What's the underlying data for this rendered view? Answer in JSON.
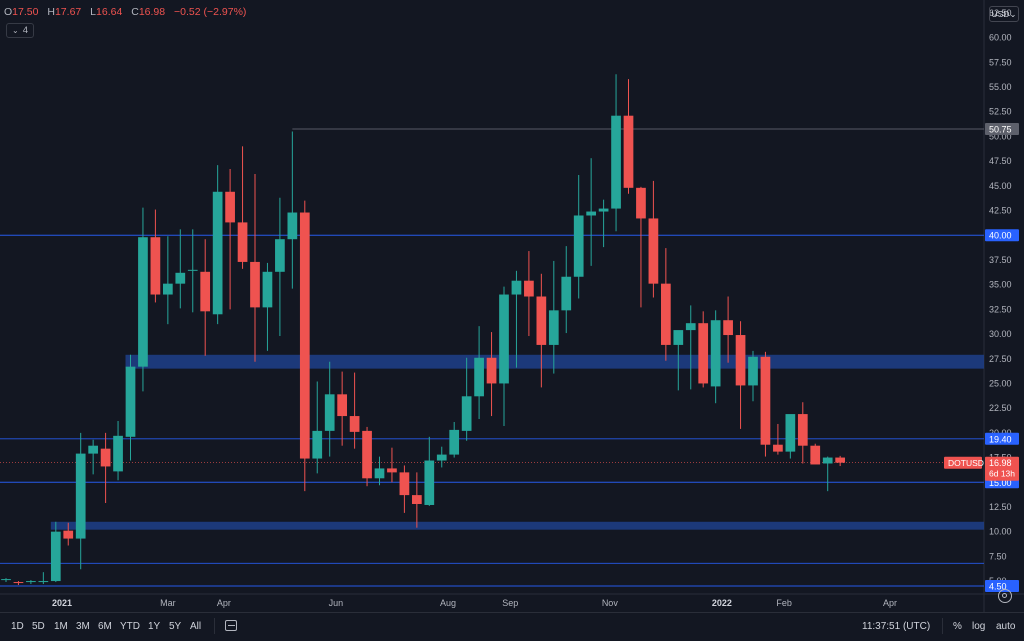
{
  "header": {
    "ohlc": [
      {
        "key": "O",
        "value": "17.50"
      },
      {
        "key": "H",
        "value": "17.67"
      },
      {
        "key": "L",
        "value": "16.64"
      },
      {
        "key": "C",
        "value": "16.98"
      },
      {
        "key": "",
        "value": "−0.52 (−2.97%)"
      }
    ],
    "indicator_count": "4",
    "currency": "USD"
  },
  "toolbar": {
    "timeframes": [
      "1D",
      "5D",
      "1M",
      "3M",
      "6M",
      "YTD",
      "1Y",
      "5Y",
      "All"
    ],
    "clock": "11:37:51 (UTC)",
    "percent": "%",
    "log": "log",
    "auto": "auto"
  },
  "colors": {
    "background": "#131722",
    "up": "#26a69a",
    "down": "#ef5350",
    "zone": "#1e3f8a",
    "hline": "#2962ff",
    "axis_text": "#b2b5be"
  },
  "chart_data": {
    "type": "candlestick",
    "symbol": "DOTUSD",
    "yaxis": {
      "min": 4.5,
      "max": 63.0,
      "ticks": [
        "5.00",
        "7.50",
        "10.00",
        "12.50",
        "15.00",
        "17.50",
        "20.00",
        "22.50",
        "25.00",
        "27.50",
        "30.00",
        "32.50",
        "35.00",
        "37.50",
        "40.00",
        "42.50",
        "45.00",
        "47.50",
        "50.00",
        "52.50",
        "55.00",
        "57.50",
        "60.00",
        "62.50"
      ]
    },
    "xaxis": {
      "labels": [
        {
          "label": "2021",
          "index": 4.5,
          "bold": true
        },
        {
          "label": "Mar",
          "index": 13
        },
        {
          "label": "Apr",
          "index": 17.5
        },
        {
          "label": "Jun",
          "index": 26.5
        },
        {
          "label": "Aug",
          "index": 35.5
        },
        {
          "label": "Sep",
          "index": 40.5
        },
        {
          "label": "Nov",
          "index": 48.5
        },
        {
          "label": "2022",
          "index": 57.5,
          "bold": true
        },
        {
          "label": "Feb",
          "index": 62.5
        },
        {
          "label": "Apr",
          "index": 71
        }
      ]
    },
    "candles": [
      [
        5.1,
        5.3,
        4.9,
        5.2
      ],
      [
        4.9,
        5.0,
        4.6,
        4.8
      ],
      [
        4.9,
        5.1,
        4.7,
        5.0
      ],
      [
        4.9,
        5.9,
        4.7,
        5.0
      ],
      [
        5.0,
        11.0,
        4.9,
        10.0
      ],
      [
        10.1,
        10.9,
        8.6,
        9.3
      ],
      [
        9.3,
        20.0,
        6.2,
        17.9
      ],
      [
        17.9,
        19.3,
        15.8,
        18.7
      ],
      [
        18.4,
        20.0,
        12.9,
        16.6
      ],
      [
        16.1,
        21.2,
        15.2,
        19.7
      ],
      [
        19.6,
        27.9,
        17.2,
        26.7
      ],
      [
        26.7,
        42.8,
        24.2,
        39.8
      ],
      [
        39.8,
        42.6,
        33.2,
        34.0
      ],
      [
        34.0,
        39.9,
        31.0,
        35.1
      ],
      [
        35.1,
        40.6,
        32.6,
        36.2
      ],
      [
        36.5,
        40.6,
        32.2,
        36.5
      ],
      [
        36.3,
        39.6,
        27.8,
        32.3
      ],
      [
        32.0,
        47.1,
        31.0,
        44.4
      ],
      [
        44.4,
        46.7,
        32.5,
        41.3
      ],
      [
        41.3,
        49.0,
        36.6,
        37.3
      ],
      [
        37.3,
        46.2,
        27.2,
        32.7
      ],
      [
        32.7,
        37.2,
        28.3,
        36.3
      ],
      [
        36.3,
        43.8,
        29.8,
        39.6
      ],
      [
        39.6,
        50.5,
        34.6,
        42.3
      ],
      [
        42.3,
        43.5,
        14.1,
        17.4
      ],
      [
        17.4,
        25.2,
        15.9,
        20.2
      ],
      [
        20.2,
        27.2,
        17.6,
        23.9
      ],
      [
        23.9,
        26.2,
        18.7,
        21.7
      ],
      [
        21.7,
        26.1,
        18.4,
        20.1
      ],
      [
        20.2,
        20.6,
        14.6,
        15.4
      ],
      [
        15.4,
        17.6,
        14.7,
        16.4
      ],
      [
        16.4,
        18.5,
        15.0,
        16.0
      ],
      [
        16.0,
        16.7,
        11.9,
        13.7
      ],
      [
        13.7,
        16.0,
        10.4,
        12.8
      ],
      [
        12.7,
        19.6,
        12.6,
        17.2
      ],
      [
        17.2,
        18.6,
        16.5,
        17.8
      ],
      [
        17.8,
        21.1,
        17.5,
        20.3
      ],
      [
        20.2,
        27.6,
        19.2,
        23.7
      ],
      [
        23.7,
        30.8,
        21.4,
        27.6
      ],
      [
        27.6,
        30.2,
        21.7,
        25.0
      ],
      [
        25.0,
        34.8,
        20.7,
        34.0
      ],
      [
        34.0,
        36.4,
        26.6,
        35.4
      ],
      [
        35.4,
        38.4,
        29.8,
        33.8
      ],
      [
        33.8,
        36.1,
        24.6,
        28.9
      ],
      [
        28.9,
        37.4,
        26.0,
        32.4
      ],
      [
        32.4,
        38.9,
        30.1,
        35.8
      ],
      [
        35.8,
        46.1,
        33.6,
        42.0
      ],
      [
        42.0,
        47.8,
        36.9,
        42.4
      ],
      [
        42.4,
        43.6,
        38.8,
        42.7
      ],
      [
        42.7,
        56.3,
        40.4,
        52.1
      ],
      [
        52.1,
        55.8,
        44.2,
        44.8
      ],
      [
        44.8,
        44.9,
        32.7,
        41.7
      ],
      [
        41.7,
        45.5,
        33.7,
        35.1
      ],
      [
        35.1,
        38.7,
        27.3,
        28.9
      ],
      [
        28.9,
        30.2,
        24.3,
        30.4
      ],
      [
        30.4,
        32.9,
        24.4,
        31.1
      ],
      [
        31.1,
        32.3,
        24.6,
        25.0
      ],
      [
        24.7,
        32.4,
        23.0,
        31.4
      ],
      [
        31.4,
        33.8,
        27.1,
        29.9
      ],
      [
        29.9,
        31.3,
        20.4,
        24.8
      ],
      [
        24.8,
        28.3,
        23.2,
        27.7
      ],
      [
        27.7,
        28.2,
        17.6,
        18.8
      ],
      [
        18.8,
        20.9,
        17.8,
        18.1
      ],
      [
        18.1,
        21.8,
        17.4,
        21.9
      ],
      [
        21.9,
        23.1,
        16.9,
        18.7
      ],
      [
        18.7,
        18.9,
        16.9,
        16.8
      ],
      [
        16.9,
        17.6,
        14.1,
        17.5
      ],
      [
        17.5,
        17.67,
        16.64,
        16.98
      ]
    ],
    "horizontal_levels": [
      {
        "price": 50.75,
        "label": "50.75",
        "style": "thin-gray",
        "start_index": 23
      },
      {
        "price": 40.0,
        "label": "40.00",
        "style": "line"
      },
      {
        "price": 19.4,
        "label": "19.40",
        "style": "line"
      },
      {
        "price": 15.0,
        "label": "15.00",
        "style": "line"
      },
      {
        "price": 6.8,
        "label": "",
        "style": "line"
      },
      {
        "price": 4.5,
        "label": "4.50",
        "style": "line"
      }
    ],
    "zones": [
      {
        "from": 26.5,
        "to": 27.9,
        "start_index": 10
      },
      {
        "from": 10.2,
        "to": 11.0,
        "start_index": 4
      }
    ],
    "last_price": {
      "label": "DOTUSD",
      "value": "16.98",
      "countdown": "6d 13h"
    }
  }
}
